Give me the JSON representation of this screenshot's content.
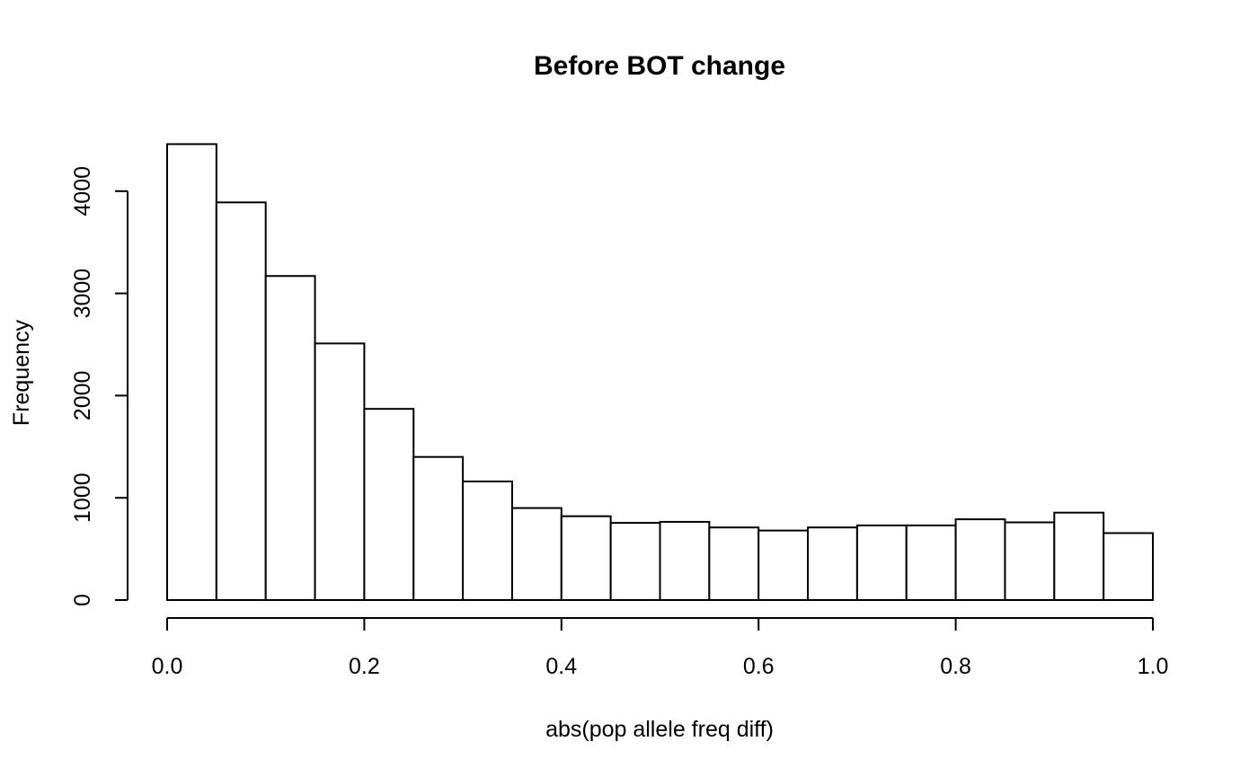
{
  "chart_data": {
    "type": "bar",
    "title": "Before BOT change",
    "xlabel": "abs(pop allele freq diff)",
    "ylabel": "Frequency",
    "bin_edges": [
      0.0,
      0.05,
      0.1,
      0.15,
      0.2,
      0.25,
      0.3,
      0.35,
      0.4,
      0.45,
      0.5,
      0.55,
      0.6,
      0.65,
      0.7,
      0.75,
      0.8,
      0.85,
      0.9,
      0.95,
      1.0
    ],
    "values": [
      4460,
      3890,
      3170,
      2510,
      1870,
      1400,
      1160,
      900,
      820,
      755,
      765,
      710,
      680,
      710,
      730,
      730,
      790,
      760,
      855,
      655
    ],
    "xlim": [
      0,
      1
    ],
    "ylim": [
      0,
      4460
    ],
    "x_ticks": [
      "0.0",
      "0.2",
      "0.4",
      "0.6",
      "0.8",
      "1.0"
    ],
    "y_ticks": [
      "0",
      "1000",
      "2000",
      "3000",
      "4000"
    ],
    "grid": false,
    "legend": "none"
  }
}
